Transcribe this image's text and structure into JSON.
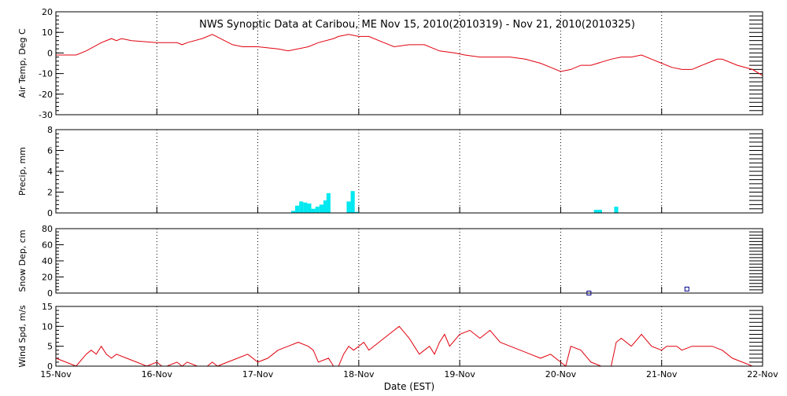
{
  "chart_data": {
    "type": "multi-panel-timeseries",
    "title": "NWS Synoptic Data at Caribou, ME   Nov 15, 2010(2010319) - Nov 21, 2010(2010325)",
    "xlabel": "Date (EST)",
    "x_ticks": [
      "15-Nov",
      "16-Nov",
      "17-Nov",
      "18-Nov",
      "19-Nov",
      "20-Nov",
      "21-Nov",
      "22-Nov"
    ],
    "x_range_days": [
      0,
      7
    ],
    "colors": {
      "line": "#e0000d",
      "bars": "#00e8f0",
      "markers": "#00008b",
      "grid": "#000000"
    },
    "panels": [
      {
        "id": "air-temp",
        "type": "line",
        "ylabel": "Air Temp, Deg C",
        "ylim": [
          -30,
          20
        ],
        "yticks": [
          -30,
          -20,
          -10,
          0,
          10,
          20
        ],
        "series": {
          "x": [
            0,
            0.2,
            0.3,
            0.45,
            0.55,
            0.6,
            0.65,
            0.75,
            1.0,
            1.1,
            1.2,
            1.25,
            1.3,
            1.45,
            1.55,
            1.75,
            1.85,
            2.0,
            2.2,
            2.3,
            2.5,
            2.6,
            2.75,
            2.8,
            2.9,
            3.0,
            3.1,
            3.25,
            3.35,
            3.5,
            3.65,
            3.8,
            3.95,
            4.05,
            4.2,
            4.35,
            4.5,
            4.65,
            4.8,
            4.9,
            5.0,
            5.1,
            5.2,
            5.3,
            5.5,
            5.6,
            5.7,
            5.8,
            5.9,
            6.0,
            6.1,
            6.2,
            6.3,
            6.4,
            6.5,
            6.55,
            6.6,
            6.75,
            6.9,
            7.0
          ],
          "y": [
            -1,
            -1,
            1,
            5,
            7,
            6,
            7,
            6,
            5,
            5,
            5,
            4,
            5,
            7,
            9,
            4,
            3,
            3,
            2,
            1,
            3,
            5,
            7,
            8,
            9,
            8,
            8,
            5,
            3,
            4,
            4,
            1,
            0,
            -1,
            -2,
            -2,
            -2,
            -3,
            -5,
            -7,
            -9,
            -8,
            -6,
            -6,
            -3,
            -2,
            -2,
            -1,
            -3,
            -5,
            -7,
            -8,
            -8,
            -6,
            -4,
            -3,
            -3,
            -6,
            -8,
            -11
          ]
        }
      },
      {
        "id": "precip",
        "type": "bar",
        "ylabel": "Precip, mm",
        "ylim": [
          0,
          8
        ],
        "yticks": [
          0,
          2,
          4,
          6,
          8
        ],
        "bar_width_days": 0.04,
        "series": {
          "x": [
            2.33,
            2.37,
            2.41,
            2.45,
            2.49,
            2.53,
            2.57,
            2.61,
            2.65,
            2.68,
            2.88,
            2.92,
            2.96,
            5.33,
            5.37,
            5.53
          ],
          "y": [
            0.2,
            0.7,
            1.1,
            1.0,
            0.9,
            0.4,
            0.6,
            0.8,
            1.2,
            1.9,
            1.1,
            2.1,
            0.1,
            0.3,
            0.3,
            0.6
          ]
        }
      },
      {
        "id": "snow-depth",
        "type": "scatter",
        "ylabel": "Snow Dep, cm",
        "ylim": [
          0,
          80
        ],
        "yticks": [
          0,
          20,
          40,
          60,
          80
        ],
        "series": {
          "x": [
            5.28,
            6.25
          ],
          "y": [
            0,
            5
          ]
        }
      },
      {
        "id": "wind-speed",
        "type": "line",
        "ylabel": "Wind Spd, m/s",
        "ylim": [
          0,
          15
        ],
        "yticks": [
          0,
          5,
          10,
          15
        ],
        "series": {
          "x": [
            0,
            0.1,
            0.2,
            0.3,
            0.35,
            0.4,
            0.45,
            0.5,
            0.55,
            0.6,
            0.7,
            0.8,
            0.9,
            1.0,
            1.05,
            1.1,
            1.2,
            1.25,
            1.3,
            1.4,
            1.5,
            1.55,
            1.6,
            1.7,
            1.8,
            1.9,
            2.0,
            2.1,
            2.15,
            2.2,
            2.3,
            2.4,
            2.5,
            2.55,
            2.6,
            2.7,
            2.75,
            2.8,
            2.85,
            2.9,
            2.95,
            3.0,
            3.05,
            3.1,
            3.2,
            3.3,
            3.4,
            3.5,
            3.55,
            3.6,
            3.65,
            3.7,
            3.75,
            3.8,
            3.85,
            3.9,
            4.0,
            4.1,
            4.2,
            4.3,
            4.4,
            4.5,
            4.6,
            4.7,
            4.8,
            4.9,
            5.0,
            5.05,
            5.1,
            5.2,
            5.3,
            5.4,
            5.5,
            5.55,
            5.6,
            5.7,
            5.8,
            5.9,
            6.0,
            6.05,
            6.1,
            6.15,
            6.2,
            6.3,
            6.4,
            6.5,
            6.6,
            6.7,
            6.8,
            6.9,
            7.0
          ],
          "y": [
            2,
            1,
            0,
            3,
            4,
            3,
            5,
            3,
            2,
            3,
            2,
            1,
            0,
            1,
            0,
            0,
            1,
            0,
            1,
            0,
            0,
            1,
            0,
            1,
            2,
            3,
            1,
            2,
            3,
            4,
            5,
            6,
            5,
            4,
            1,
            2,
            0,
            0,
            3,
            5,
            4,
            5,
            6,
            4,
            6,
            8,
            10,
            7,
            5,
            3,
            4,
            5,
            3,
            6,
            8,
            5,
            8,
            9,
            7,
            9,
            6,
            5,
            4,
            3,
            2,
            3,
            1,
            0,
            5,
            4,
            1,
            0,
            0,
            6,
            7,
            5,
            8,
            5,
            4,
            5,
            5,
            5,
            4,
            5,
            5,
            5,
            4,
            2,
            1,
            0,
            0
          ]
        }
      }
    ]
  }
}
